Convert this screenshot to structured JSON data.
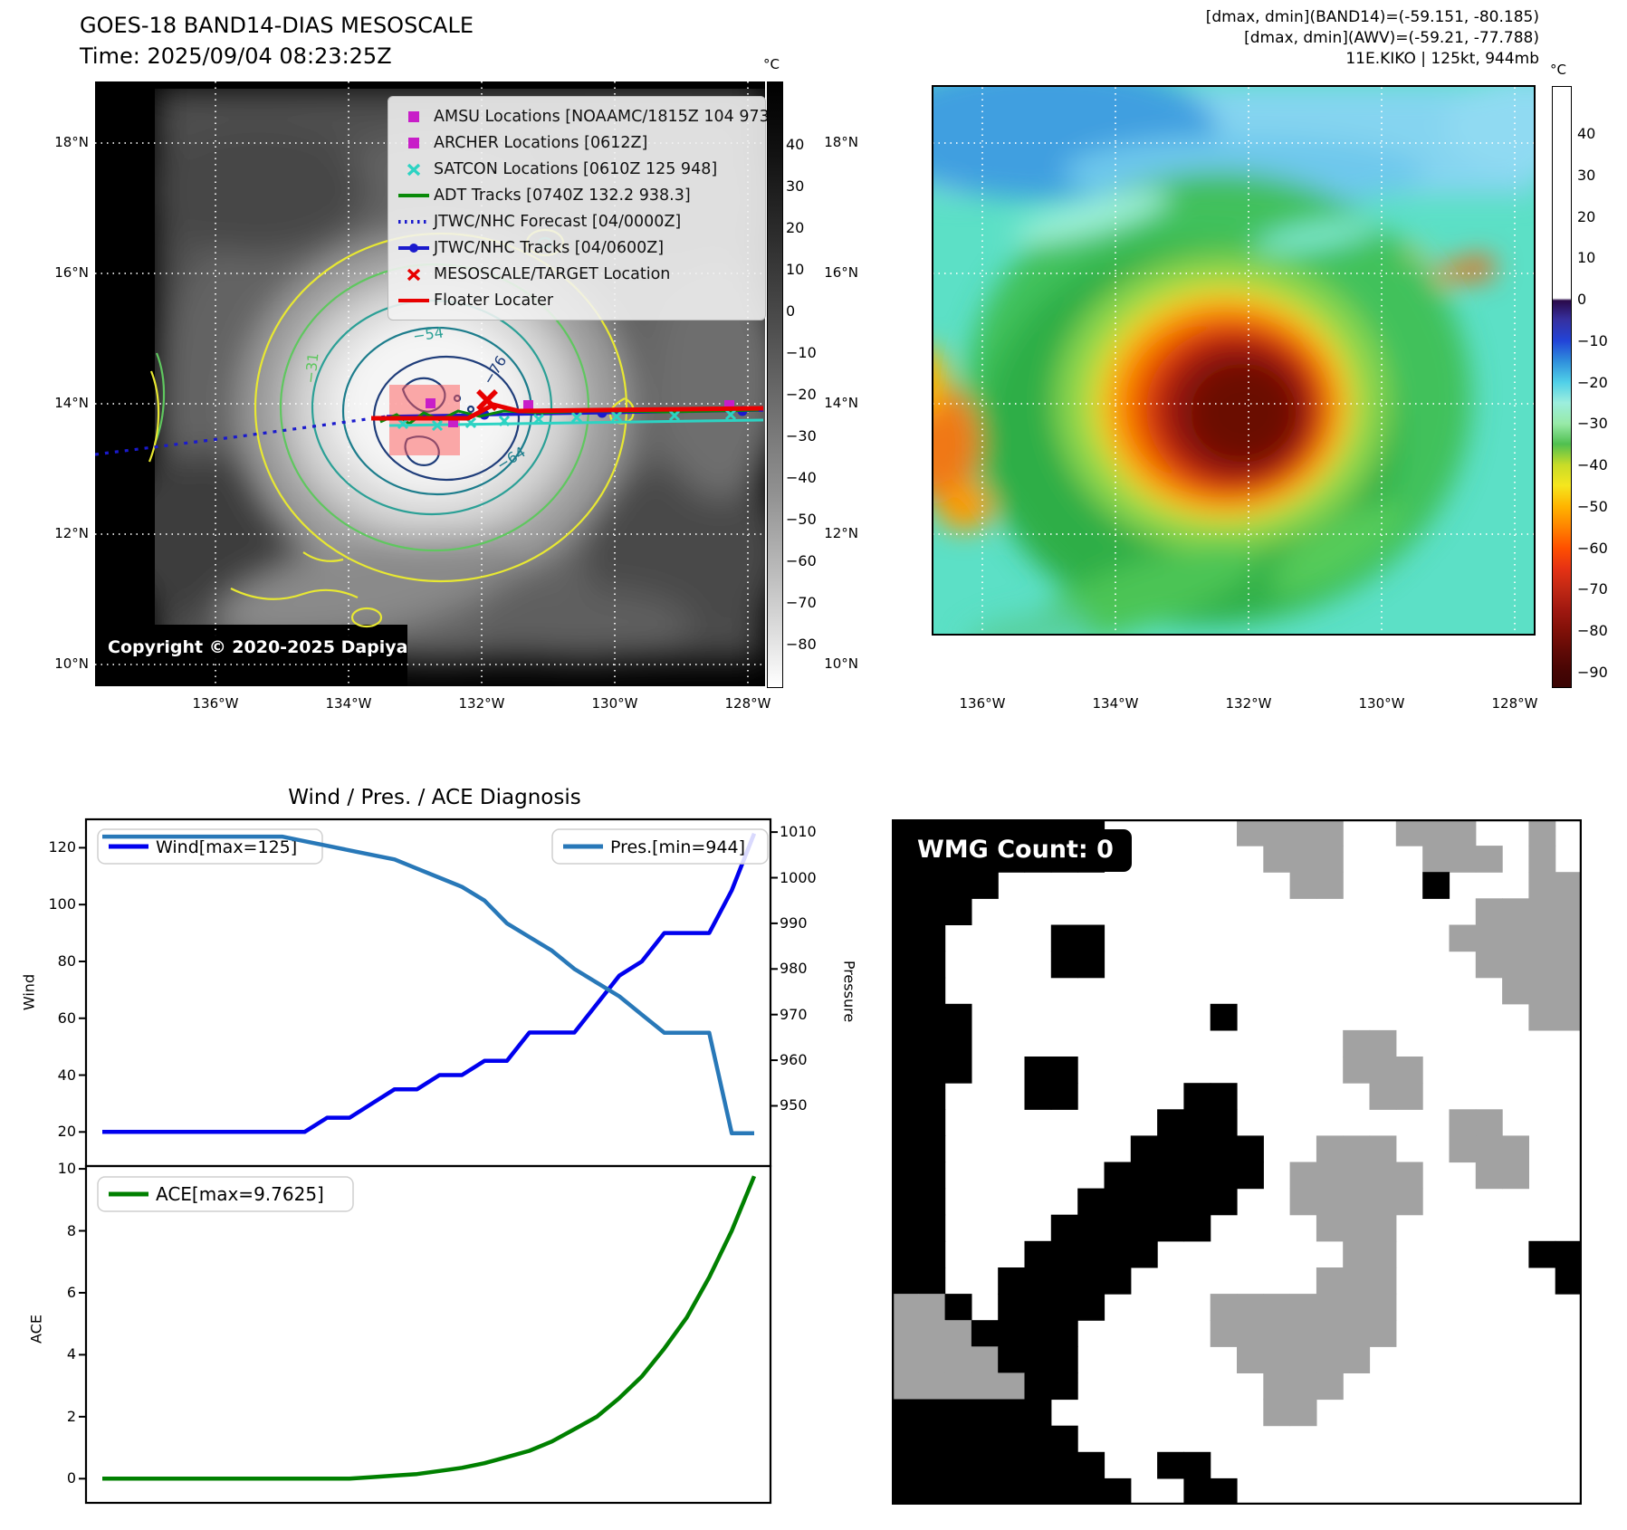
{
  "figure": {
    "title": "GOES-18 BAND14-DIAS MESOSCALE",
    "subtitle": "Time: 2025/09/04 08:23:25Z",
    "info_lines": [
      "[dmax, dmin](BAND14)=(-59.151, -80.185)",
      "[dmax, dmin](AWV)=(-59.21, -77.788)",
      "11E.KIKO | 125kt, 944mb"
    ],
    "copyright": "Copyright © 2020-2025 Dapiya"
  },
  "geo_axes": {
    "lat_ticks": [
      "18°N",
      "16°N",
      "14°N",
      "12°N",
      "10°N"
    ],
    "lon_ticks": [
      "136°W",
      "134°W",
      "132°W",
      "130°W",
      "128°W"
    ]
  },
  "band14_panel": {
    "contour_labels": [
      "−54",
      "−76",
      "−64",
      "−31"
    ],
    "colorbar": {
      "unit": "°C",
      "ticks": [
        "40",
        "30",
        "20",
        "10",
        "0",
        "−10",
        "−20",
        "−30",
        "−40",
        "−50",
        "−60",
        "−70",
        "−80"
      ]
    },
    "legend": [
      {
        "label": "AMSU Locations [NOAAMC/1815Z 104 973]",
        "marker": "square",
        "color": "#c81ec8"
      },
      {
        "label": "ARCHER Locations [0612Z]",
        "marker": "square",
        "color": "#c81ec8"
      },
      {
        "label": "SATCON Locations [0610Z 125 948]",
        "marker": "x",
        "color": "#2dd3c3"
      },
      {
        "label": "ADT Tracks [0740Z 132.2 938.3]",
        "marker": "line",
        "color": "#0a8a0a"
      },
      {
        "label": "JTWC/NHC Forecast [04/0000Z]",
        "marker": "dotted",
        "color": "#1a1acd"
      },
      {
        "label": "JTWC/NHC Tracks [04/0600Z]",
        "marker": "linedot",
        "color": "#1a1acd"
      },
      {
        "label": "MESOSCALE/TARGET Location",
        "marker": "x",
        "color": "#e80000"
      },
      {
        "label": "Floater Locater",
        "marker": "line",
        "color": "#e80000"
      }
    ]
  },
  "awv_panel": {
    "colorbar": {
      "unit": "°C",
      "ticks": [
        "40",
        "30",
        "20",
        "10",
        "0",
        "−10",
        "−20",
        "−30",
        "−40",
        "−50",
        "−60",
        "−70",
        "−80",
        "−90"
      ]
    }
  },
  "wmg_panel": {
    "count_label": "WMG Count: 0",
    "legend_colors": {
      "B": "#000000",
      "W": "#ffffff",
      "G": "#a2a2a2"
    },
    "grid": [
      "BBBBBBBBWWWWWGGGGWWGGGWWGW",
      "BBBBBBBBWWWWWWGGGWWWGGGWGW",
      "BBBBWWWWWWWWWWWGGWWWBWWWGG",
      "BBBWWWWWWWWWWWWWWWWWWWGGGG",
      "BBWWWWBBWWWWWWWWWWWWWGGGGG",
      "BBWWWWBBWWWWWWWWWWWWWWGGGG",
      "BBWWWWWWWWWWWWWWWWWWWWWGGG",
      "BBBWWWWWWWWWBWWWWWWWWWWWGG",
      "BBBWWWWWWWWWWWWWWGGWWWWWWW",
      "BBBWWBBWWWWWWWWWWGGGWWWWWW",
      "BBWWWBBWWWWBBWWWWWGGWWWWWW",
      "BBWWWWWWWWBBBWWWWWWWWGGWWW",
      "BBWWWWWWWBBBBBWWGGGWWGGGWW",
      "BBWWWWWWBBBBBBWGGGGGWWGGWW",
      "BBWWWWWBBBBBBWWGGGGGWWWWWW",
      "BBWWWWBBBBBBWWWWGGGWWWWWWW",
      "BBWWWBBBBBWWWWWWWGGWWWWWBB",
      "BBWWBBBBBWWWWWWWGGGWWWWWWB",
      "GGBWBBBBWWWWGGGGGGGWWWWWWW",
      "GGGBBBBWWWWWGGGGGGGWWWWWWW",
      "GGGGBBBWWWWWWGGGGGWWWWWWWW",
      "GGGGGBBWWWWWWWGGGWWWWWWWWW",
      "BBBBBBWWWWWWWWGGWWWWWWWWWW",
      "BBBBBBBWWWWWWWWWWWWWWWWWWW",
      "BBBBBBBBWWBBWWWWWWWWWWWWWW",
      "BBBBBBBBBWWBBWWWWWWWWWWWWW"
    ]
  },
  "chart_data": [
    {
      "type": "line",
      "title": "Wind / Pres. / ACE Diagnosis",
      "xlabel": "",
      "grid": false,
      "legend_position": "upper-left and upper-right",
      "series": [
        {
          "name": "Wind[max=125]",
          "color": "#0000ee",
          "axis": "left",
          "ylabel": "Wind",
          "ylim": [
            8,
            130
          ],
          "yticks": [
            20,
            40,
            60,
            80,
            100,
            120
          ],
          "values": [
            20,
            20,
            20,
            20,
            20,
            20,
            20,
            20,
            20,
            20,
            25,
            25,
            30,
            35,
            35,
            40,
            40,
            45,
            45,
            55,
            55,
            55,
            65,
            75,
            80,
            90,
            90,
            90,
            105,
            125
          ]
        },
        {
          "name": "Pres.[min=944]",
          "color": "#2878b8",
          "axis": "right",
          "ylabel": "Pressure",
          "ylim": [
            936.8,
            1012.8
          ],
          "yticks": [
            950,
            960,
            970,
            980,
            990,
            1000,
            1010
          ],
          "values": [
            1009,
            1009,
            1009,
            1009,
            1009,
            1009,
            1009,
            1009,
            1009,
            1008,
            1007,
            1006,
            1005,
            1004,
            1002,
            1000,
            998,
            995,
            990,
            987,
            984,
            980,
            977,
            974,
            970,
            966,
            966,
            966,
            944,
            944
          ]
        }
      ]
    },
    {
      "type": "line",
      "title": "",
      "xlabel": "",
      "grid": false,
      "legend_position": "upper-left",
      "series": [
        {
          "name": "ACE[max=9.7625]",
          "color": "#008000",
          "axis": "left",
          "ylabel": "ACE",
          "ylim": [
            -0.78,
            10.09
          ],
          "yticks": [
            0,
            2,
            4,
            6,
            8,
            10
          ],
          "values": [
            0,
            0,
            0,
            0,
            0,
            0,
            0,
            0,
            0,
            0,
            0,
            0,
            0.05,
            0.1,
            0.15,
            0.25,
            0.35,
            0.5,
            0.7,
            0.9,
            1.2,
            1.6,
            2,
            2.6,
            3.3,
            4.2,
            5.2,
            6.5,
            8,
            9.7625
          ]
        }
      ]
    }
  ]
}
